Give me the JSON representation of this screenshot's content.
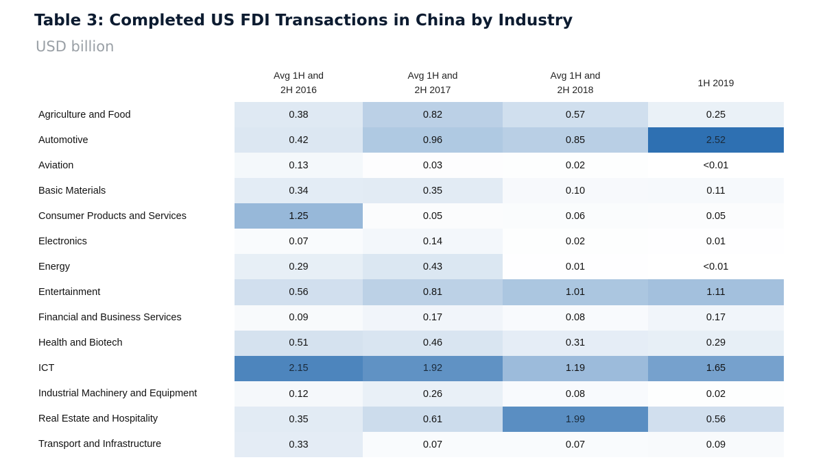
{
  "title": "Table 3: Completed US FDI Transactions in China by Industry",
  "subtitle": "USD billion",
  "colors": {
    "low": "#ffffff",
    "high": "#2e70b2",
    "text": "#111111"
  },
  "chart_data": {
    "type": "heatmap",
    "title": "Table 3: Completed US FDI Transactions in China by Industry",
    "unit": "USD billion",
    "columns": [
      "Avg 1H and\n2H 2016",
      "Avg 1H and\n2H 2017",
      "Avg 1H and\n2H 2018",
      "1H 2019"
    ],
    "rows": [
      {
        "label": "Agriculture and Food",
        "values": [
          0.38,
          0.82,
          0.57,
          0.25
        ],
        "display": [
          "0.38",
          "0.82",
          "0.57",
          "0.25"
        ]
      },
      {
        "label": "Automotive",
        "values": [
          0.42,
          0.96,
          0.85,
          2.52
        ],
        "display": [
          "0.42",
          "0.96",
          "0.85",
          "2.52"
        ]
      },
      {
        "label": "Aviation",
        "values": [
          0.13,
          0.03,
          0.02,
          0.005
        ],
        "display": [
          "0.13",
          "0.03",
          "0.02",
          "<0.01"
        ]
      },
      {
        "label": "Basic Materials",
        "values": [
          0.34,
          0.35,
          0.1,
          0.11
        ],
        "display": [
          "0.34",
          "0.35",
          "0.10",
          "0.11"
        ]
      },
      {
        "label": "Consumer Products and Services",
        "values": [
          1.25,
          0.05,
          0.06,
          0.05
        ],
        "display": [
          "1.25",
          "0.05",
          "0.06",
          "0.05"
        ]
      },
      {
        "label": "Electronics",
        "values": [
          0.07,
          0.14,
          0.02,
          0.01
        ],
        "display": [
          "0.07",
          "0.14",
          "0.02",
          "0.01"
        ]
      },
      {
        "label": "Energy",
        "values": [
          0.29,
          0.43,
          0.01,
          0.005
        ],
        "display": [
          "0.29",
          "0.43",
          "0.01",
          "<0.01"
        ]
      },
      {
        "label": "Entertainment",
        "values": [
          0.56,
          0.81,
          1.01,
          1.11
        ],
        "display": [
          "0.56",
          "0.81",
          "1.01",
          "1.11"
        ]
      },
      {
        "label": "Financial and Business Services",
        "values": [
          0.09,
          0.17,
          0.08,
          0.17
        ],
        "display": [
          "0.09",
          "0.17",
          "0.08",
          "0.17"
        ]
      },
      {
        "label": "Health and Biotech",
        "values": [
          0.51,
          0.46,
          0.31,
          0.29
        ],
        "display": [
          "0.51",
          "0.46",
          "0.31",
          "0.29"
        ]
      },
      {
        "label": "ICT",
        "values": [
          2.15,
          1.92,
          1.19,
          1.65
        ],
        "display": [
          "2.15",
          "1.92",
          "1.19",
          "1.65"
        ]
      },
      {
        "label": "Industrial Machinery and Equipment",
        "values": [
          0.12,
          0.26,
          0.08,
          0.02
        ],
        "display": [
          "0.12",
          "0.26",
          "0.08",
          "0.02"
        ]
      },
      {
        "label": "Real Estate and Hospitality",
        "values": [
          0.35,
          0.61,
          1.99,
          0.56
        ],
        "display": [
          "0.35",
          "0.61",
          "1.99",
          "0.56"
        ]
      },
      {
        "label": "Transport and Infrastructure",
        "values": [
          0.33,
          0.07,
          0.07,
          0.09
        ],
        "display": [
          "0.33",
          "0.07",
          "0.07",
          "0.09"
        ]
      }
    ]
  }
}
